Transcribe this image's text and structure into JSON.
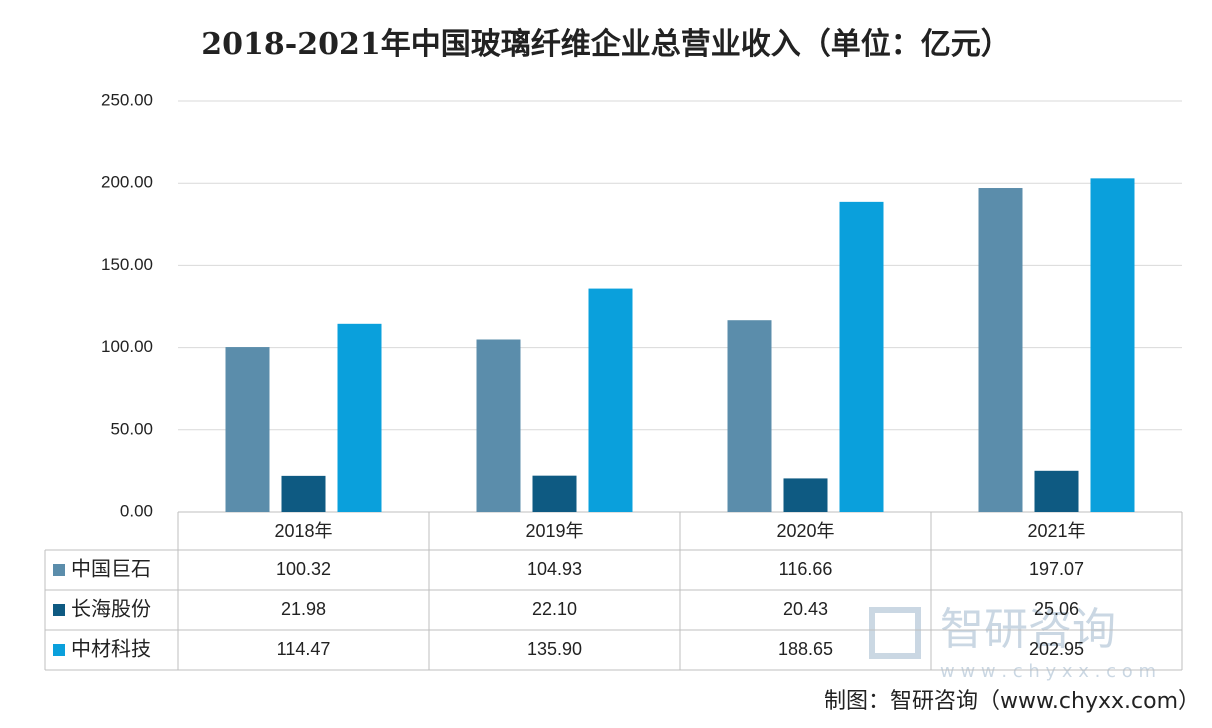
{
  "chart_data": {
    "type": "bar",
    "title": "2018-2021年中国玻璃纤维企业总营业收入（单位：亿元）",
    "categories": [
      "2018年",
      "2019年",
      "2020年",
      "2021年"
    ],
    "series": [
      {
        "name": "中国巨石",
        "color": "#5b8dab",
        "values": [
          100.32,
          104.93,
          116.66,
          197.07
        ],
        "value_labels": [
          "100.32",
          "104.93",
          "116.66",
          "197.07"
        ]
      },
      {
        "name": "长海股份",
        "color": "#0e5a82",
        "values": [
          21.98,
          22.1,
          20.43,
          25.06
        ],
        "value_labels": [
          "21.98",
          "22.10",
          "20.43",
          "25.06"
        ]
      },
      {
        "name": "中材科技",
        "color": "#0aa0dc",
        "values": [
          114.47,
          135.9,
          188.65,
          202.95
        ],
        "value_labels": [
          "114.47",
          "135.90",
          "188.65",
          "202.95"
        ]
      }
    ],
    "ylim": [
      0,
      250
    ],
    "yticks": [
      {
        "value": 0,
        "label": "0.00"
      },
      {
        "value": 50,
        "label": "50.00"
      },
      {
        "value": 100,
        "label": "100.00"
      },
      {
        "value": 150,
        "label": "150.00"
      },
      {
        "value": 200,
        "label": "200.00"
      },
      {
        "value": 250,
        "label": "250.00"
      }
    ],
    "grid": true,
    "watermark": "智研咨询",
    "watermark_url": "w w w . c h y x x . c o m",
    "source": "制图：智研咨询（www.chyxx.com）"
  }
}
